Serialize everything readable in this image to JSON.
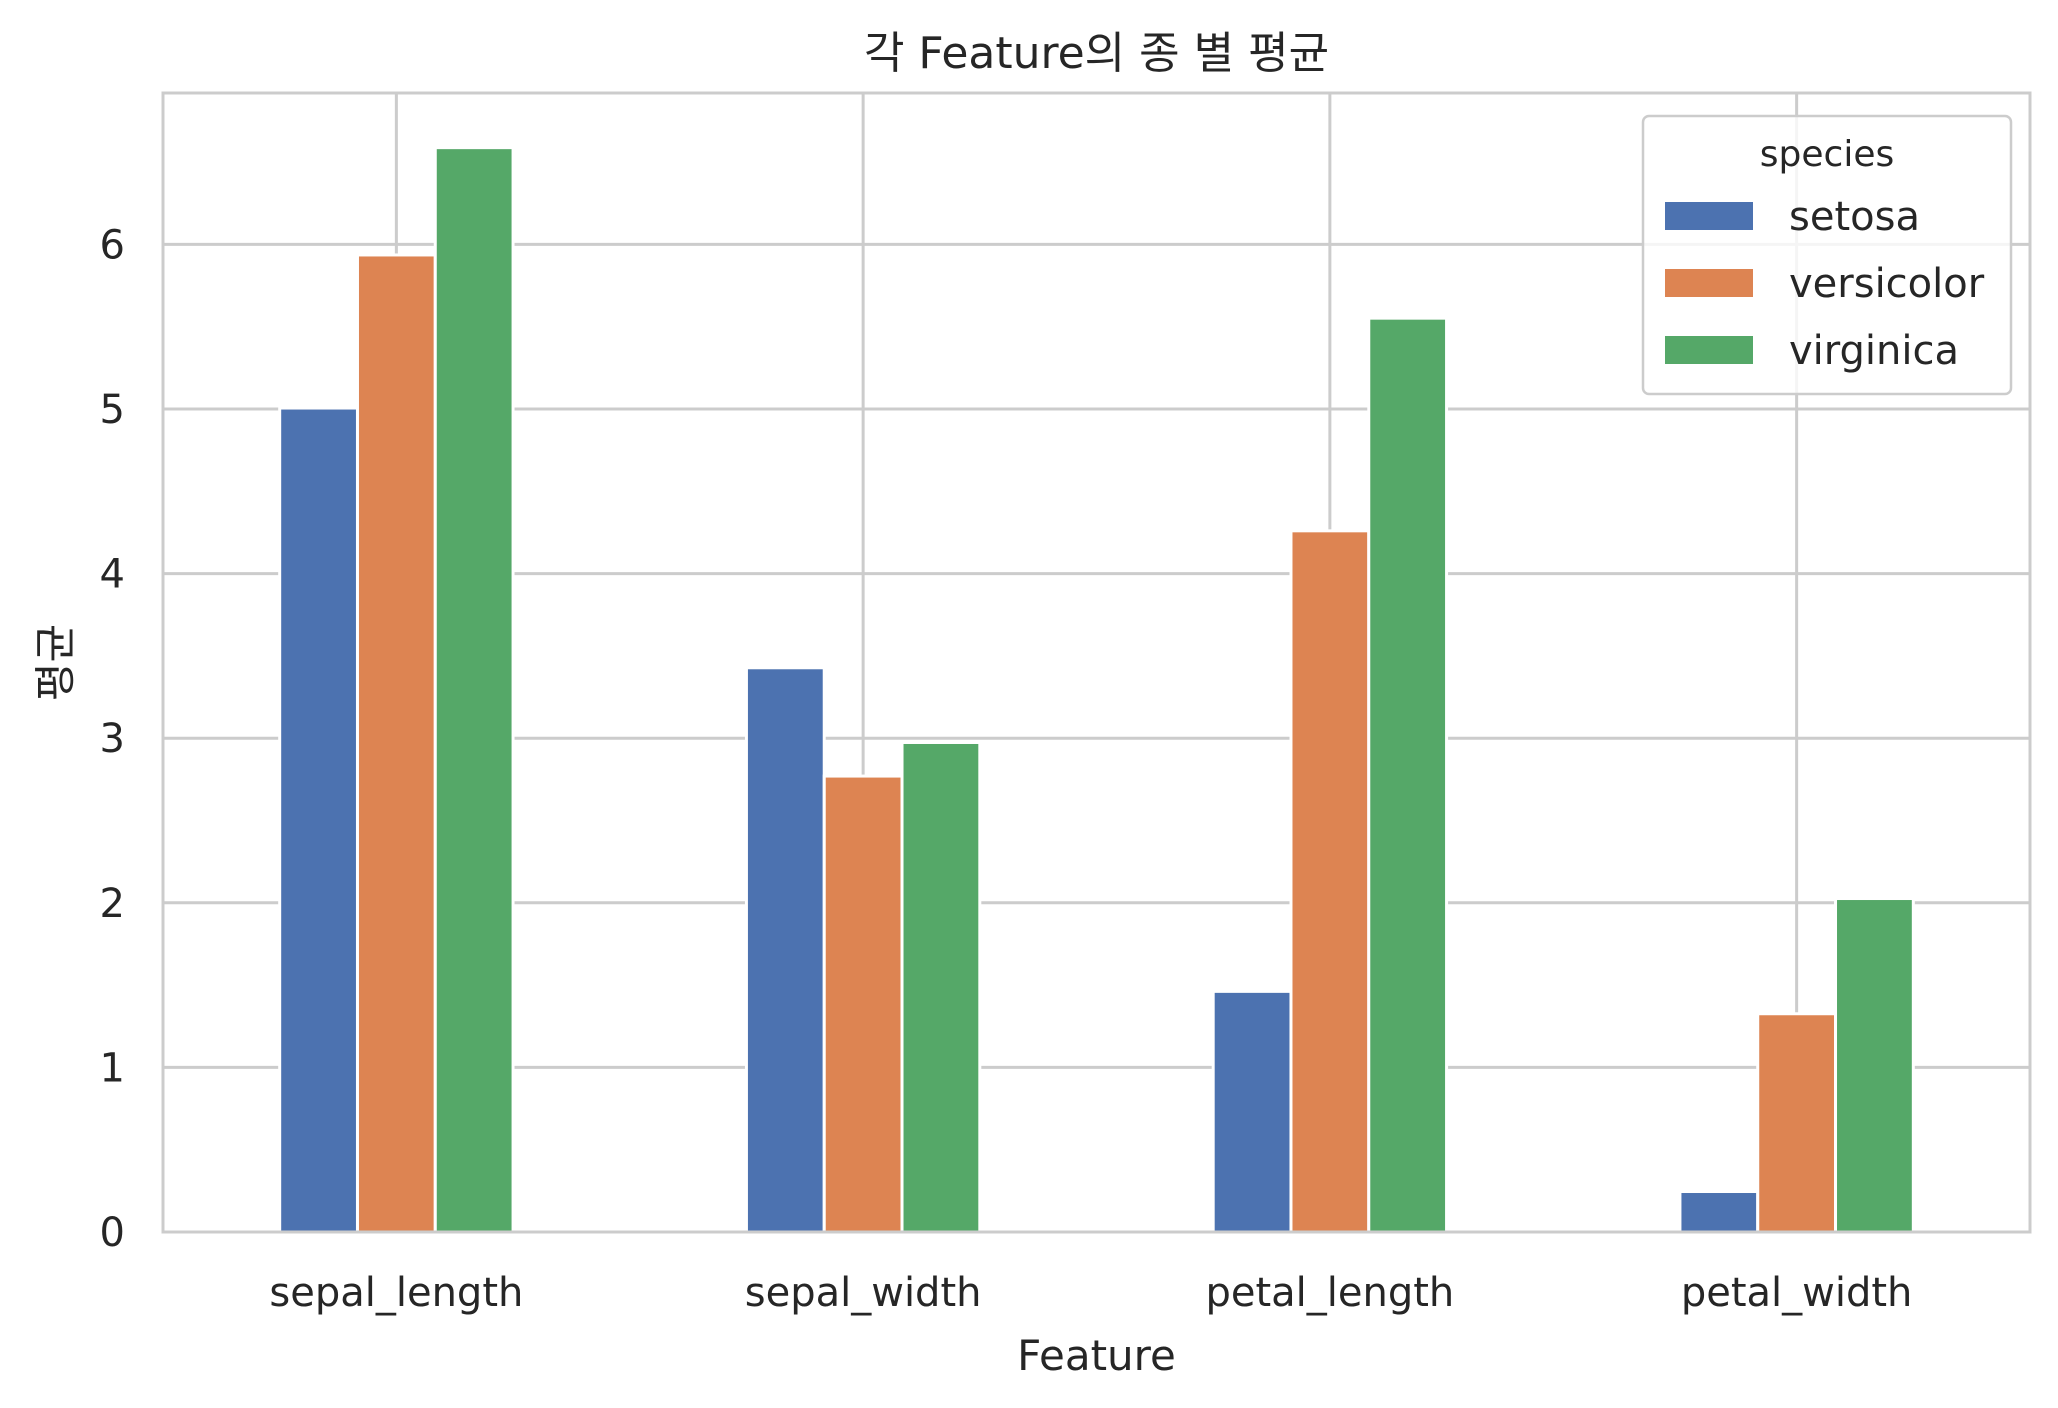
{
  "chart_data": {
    "type": "bar",
    "title": "각 Feature의 종 별 평균",
    "xlabel": "Feature",
    "ylabel": "평균",
    "categories": [
      "sepal_length",
      "sepal_width",
      "petal_length",
      "petal_width"
    ],
    "series": [
      {
        "name": "setosa",
        "color": "#4c72b0",
        "values": [
          5.006,
          3.428,
          1.462,
          0.246
        ]
      },
      {
        "name": "versicolor",
        "color": "#dd8452",
        "values": [
          5.936,
          2.77,
          4.26,
          1.326
        ]
      },
      {
        "name": "virginica",
        "color": "#55a868",
        "values": [
          6.588,
          2.974,
          5.552,
          2.026
        ]
      }
    ],
    "ylim": [
      0,
      6.92
    ],
    "yticks": [
      "0",
      "1",
      "2",
      "3",
      "4",
      "5",
      "6"
    ],
    "grid": true,
    "legend": {
      "title": "species",
      "position": "top-right"
    }
  }
}
